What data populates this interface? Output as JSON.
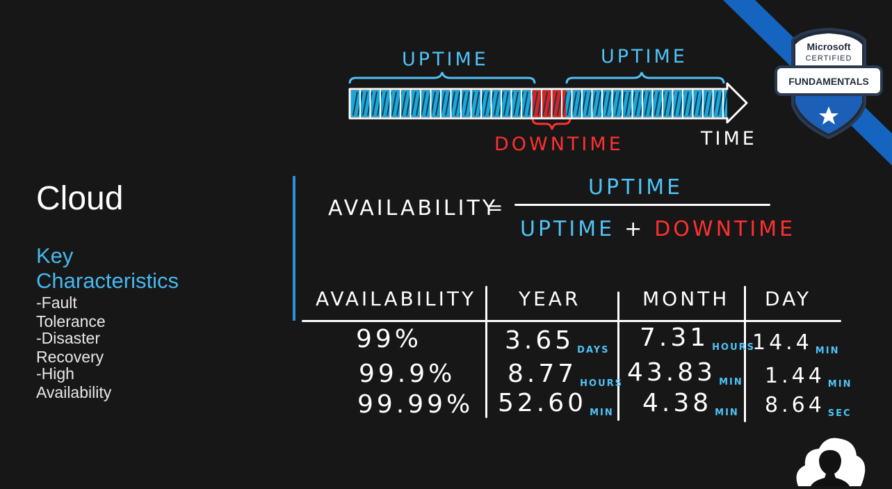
{
  "left": {
    "title": "Cloud",
    "subtitle": "Key Characteristics",
    "bullets": [
      "-Fault Tolerance",
      "-Disaster Recovery",
      "-High Availability"
    ]
  },
  "timeline": {
    "uptime_left": "UPTIME",
    "uptime_right": "UPTIME",
    "downtime": "DOWNTIME",
    "time": "TIME"
  },
  "formula": {
    "lhs": "AVAILABILITY",
    "equals": "=",
    "numerator": "UPTIME",
    "denominator_uptime": "UPTIME",
    "plus": "+",
    "denominator_downtime": "DOWNTIME"
  },
  "table": {
    "headers": [
      "AVAILABILITY",
      "YEAR",
      "MONTH",
      "DAY"
    ],
    "rows": [
      {
        "availability": "99%",
        "year": "3.65",
        "year_unit": "DAYS",
        "month": "7.31",
        "month_unit": "HOURS",
        "day": "14.4",
        "day_unit": "MIN"
      },
      {
        "availability": "99.9%",
        "year": "8.77",
        "year_unit": "HOURS",
        "month": "43.83",
        "month_unit": "MIN",
        "day": "1.44",
        "day_unit": "MIN"
      },
      {
        "availability": "99.99%",
        "year": "52.60",
        "year_unit": "MIN",
        "month": "4.38",
        "month_unit": "MIN",
        "day": "8.64",
        "day_unit": "SEC"
      }
    ]
  },
  "badge": {
    "line1": "Microsoft",
    "line2": "CERTIFIED",
    "line3": "FUNDAMENTALS"
  },
  "colors": {
    "accent_blue": "#4fc3f7",
    "downtime_red": "#ff3030",
    "divider_blue": "#2f8fd8",
    "background": "#171717"
  }
}
